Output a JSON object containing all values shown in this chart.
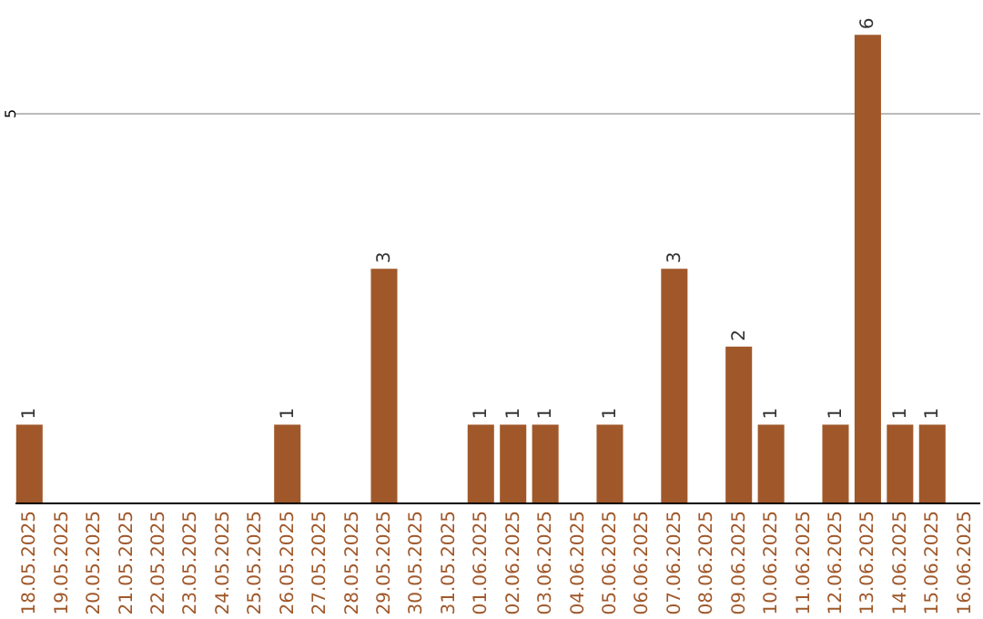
{
  "chart_data": {
    "type": "bar",
    "categories": [
      "18.05.2025",
      "19.05.2025",
      "20.05.2025",
      "21.05.2025",
      "22.05.2025",
      "23.05.2025",
      "24.05.2025",
      "25.05.2025",
      "26.05.2025",
      "27.05.2025",
      "28.05.2025",
      "29.05.2025",
      "30.05.2025",
      "31.05.2025",
      "01.06.2025",
      "02.06.2025",
      "03.06.2025",
      "04.06.2025",
      "05.06.2025",
      "06.06.2025",
      "07.06.2025",
      "08.06.2025",
      "09.06.2025",
      "10.06.2025",
      "11.06.2025",
      "12.06.2025",
      "13.06.2025",
      "14.06.2025",
      "15.06.2025",
      "16.06.2025"
    ],
    "values": [
      1,
      0,
      0,
      0,
      0,
      0,
      0,
      0,
      1,
      0,
      0,
      3,
      0,
      0,
      1,
      1,
      1,
      0,
      1,
      0,
      3,
      0,
      2,
      1,
      0,
      1,
      6,
      1,
      1,
      0
    ],
    "value_labels": [
      "1",
      null,
      null,
      null,
      null,
      null,
      null,
      null,
      "1",
      null,
      null,
      "3",
      null,
      null,
      "1",
      "1",
      "1",
      null,
      "1",
      null,
      "3",
      null,
      "2",
      "1",
      null,
      "1",
      "6",
      "1",
      "1",
      null
    ],
    "color": "#a0582a",
    "ylim": [
      0,
      6.4
    ],
    "yticks": [
      5
    ],
    "grid": "y"
  }
}
